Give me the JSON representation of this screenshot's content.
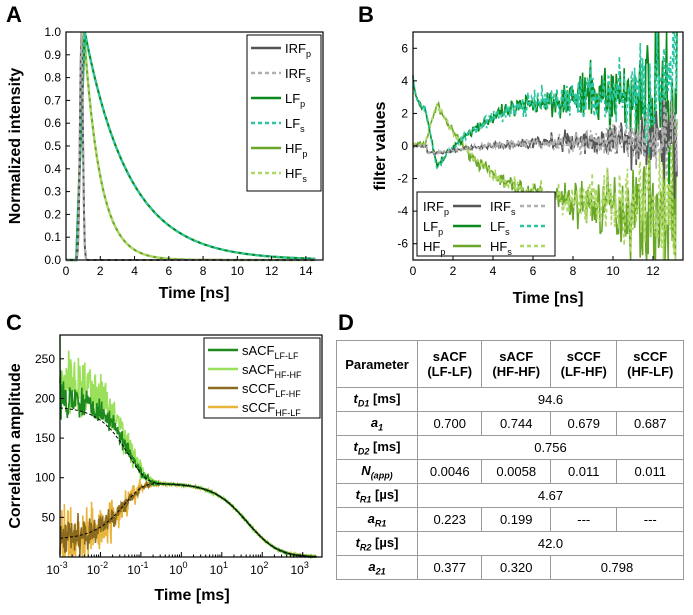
{
  "panels": {
    "A": "A",
    "B": "B",
    "C": "C",
    "D": "D"
  },
  "chart_data": [
    {
      "panel": "A",
      "type": "line",
      "xlabel": "Time [ns]",
      "ylabel": "Normalized intensity",
      "xlim": [
        0,
        15
      ],
      "ylim": [
        0,
        1.0
      ],
      "xticks": [
        0,
        2,
        4,
        6,
        8,
        10,
        12,
        14
      ],
      "yticks": [
        0.0,
        0.1,
        0.2,
        0.3,
        0.4,
        0.5,
        0.6,
        0.7,
        0.8,
        0.9,
        1.0
      ],
      "legend_position": "top-right",
      "series": [
        {
          "name": "IRF",
          "sub": "p",
          "color": "#555555",
          "style": "solid",
          "peak_time": 0.9,
          "width": 0.12
        },
        {
          "name": "IRF",
          "sub": "s",
          "color": "#b0b0b0",
          "style": "dash",
          "peak_time": 0.9,
          "width": 0.12
        },
        {
          "name": "LF",
          "sub": "p",
          "color": "#0a8a1e",
          "style": "solid",
          "onset": 0.6,
          "peak_time": 1.1,
          "tau": 2.6
        },
        {
          "name": "LF",
          "sub": "s",
          "color": "#2bc7a2",
          "style": "dash",
          "onset": 0.6,
          "peak_time": 1.1,
          "tau": 2.6
        },
        {
          "name": "HF",
          "sub": "p",
          "color": "#6aa629",
          "style": "solid",
          "onset": 0.6,
          "peak_time": 1.05,
          "tau": 0.95
        },
        {
          "name": "HF",
          "sub": "s",
          "color": "#aed864",
          "style": "dash",
          "onset": 0.6,
          "peak_time": 1.05,
          "tau": 0.95
        }
      ]
    },
    {
      "panel": "B",
      "type": "line",
      "xlabel": "Time [ns]",
      "ylabel": "filter values",
      "xlim": [
        0,
        13.5
      ],
      "ylim": [
        -7,
        7
      ],
      "xticks": [
        0,
        2,
        4,
        6,
        8,
        10,
        12
      ],
      "yticks": [
        -6,
        -4,
        -2,
        0,
        2,
        4,
        6
      ],
      "legend_position": "bottom-left",
      "series": [
        {
          "name": "IRF",
          "sub": "p",
          "color": "#555555",
          "style": "solid",
          "level_end": 0.4
        },
        {
          "name": "IRF",
          "sub": "s",
          "color": "#b0b0b0",
          "style": "dash",
          "level_end": 0.4
        },
        {
          "name": "LF",
          "sub": "p",
          "color": "#0a8a1e",
          "style": "solid",
          "min": -1.3,
          "level_end": 3.3
        },
        {
          "name": "LF",
          "sub": "s",
          "color": "#2bc7a2",
          "style": "dash",
          "min": -1.3,
          "level_end": 3.3
        },
        {
          "name": "HF",
          "sub": "p",
          "color": "#6aa629",
          "style": "solid",
          "max": 2.6,
          "level_end": -4.0
        },
        {
          "name": "HF",
          "sub": "s",
          "color": "#aed864",
          "style": "dash",
          "max": 2.6,
          "level_end": -4.0
        }
      ]
    },
    {
      "panel": "C",
      "type": "line",
      "xlabel": "Time [ms]",
      "ylabel": "Correlation amplitude",
      "xscale": "log",
      "xlim": [
        0.001,
        3000
      ],
      "ylim": [
        0,
        280
      ],
      "xtick_exponents": [
        -3,
        -2,
        -1,
        0,
        1,
        2,
        3
      ],
      "yticks": [
        50,
        100,
        150,
        200,
        250
      ],
      "legend_position": "top-right",
      "fit_line": "black dashed",
      "series": [
        {
          "name": "sACF",
          "sub": "LF-LF",
          "color": "#1e8a1e",
          "start": 205
        },
        {
          "name": "sACF",
          "sub": "HF-HF",
          "color": "#9be05a",
          "start": 225
        },
        {
          "name": "sCCF",
          "sub": "LF-HF",
          "color": "#8a6a1e",
          "start": 22
        },
        {
          "name": "sCCF",
          "sub": "HF-LF",
          "color": "#e8b43a",
          "start": 22
        }
      ]
    }
  ],
  "table": {
    "headers": [
      "Parameter",
      "sACF (LF-LF)",
      "sACF (HF-HF)",
      "sCCF (LF-HF)",
      "sCCF (HF-LF)"
    ],
    "rows": [
      {
        "param": "t",
        "psub": "D1",
        "unit": " [ms]",
        "span": "all",
        "values": [
          "94.6"
        ]
      },
      {
        "param": "a",
        "psub": "1",
        "unit": "",
        "span": "none",
        "values": [
          "0.700",
          "0.744",
          "0.679",
          "0.687"
        ]
      },
      {
        "param": "t",
        "psub": "D2",
        "unit": " [ms]",
        "span": "all",
        "values": [
          "0.756"
        ]
      },
      {
        "param": "N",
        "psub": "(app)",
        "unit": "",
        "span": "none",
        "values": [
          "0.0046",
          "0.0058",
          "0.011",
          "0.011"
        ]
      },
      {
        "param": "t",
        "psub": "R1",
        "unit": " [µs]",
        "span": "all",
        "values": [
          "4.67"
        ]
      },
      {
        "param": "a",
        "psub": "R1",
        "unit": "",
        "span": "none",
        "values": [
          "0.223",
          "0.199",
          "---",
          "---"
        ]
      },
      {
        "param": "t",
        "psub": "R2",
        "unit": " [µs]",
        "span": "all",
        "values": [
          "42.0"
        ]
      },
      {
        "param": "a",
        "psub": "21",
        "unit": "",
        "span": "split",
        "values": [
          "0.377",
          "0.320",
          "0.798"
        ]
      }
    ]
  }
}
